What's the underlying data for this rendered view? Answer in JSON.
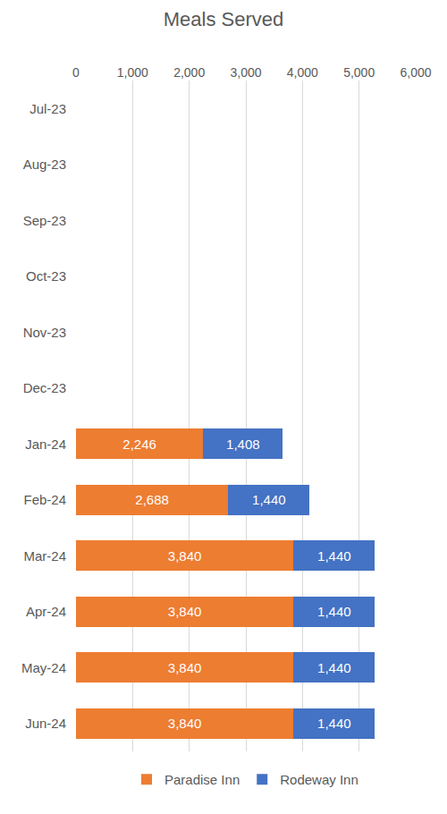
{
  "chart_data": {
    "type": "bar",
    "title": "Meals Served",
    "orientation": "horizontal",
    "stacked": true,
    "data_labels": true,
    "grid": true,
    "legend": "bottom",
    "categories": [
      "Jul-23",
      "Aug-23",
      "Sep-23",
      "Oct-23",
      "Nov-23",
      "Dec-23",
      "Jan-24",
      "Feb-24",
      "Mar-24",
      "Apr-24",
      "May-24",
      "Jun-24"
    ],
    "series": [
      {
        "name": "Paradise Inn",
        "color": "#ed7d31",
        "values": [
          null,
          null,
          null,
          null,
          null,
          null,
          2246,
          2688,
          3840,
          3840,
          3840,
          3840
        ],
        "value_labels": [
          null,
          null,
          null,
          null,
          null,
          null,
          "2,246",
          "2,688",
          "3,840",
          "3,840",
          "3,840",
          "3,840"
        ]
      },
      {
        "name": "Rodeway Inn",
        "color": "#4472c4",
        "values": [
          null,
          null,
          null,
          null,
          null,
          null,
          1408,
          1440,
          1440,
          1440,
          1440,
          1440
        ],
        "value_labels": [
          null,
          null,
          null,
          null,
          null,
          null,
          "1,408",
          "1,440",
          "1,440",
          "1,440",
          "1,440",
          "1,440"
        ]
      }
    ],
    "xlim": [
      0,
      6000
    ],
    "xticks": [
      0,
      {
        "value": 1000,
        "label": "1,000"
      },
      {
        "value": 2000,
        "label": "2,000"
      },
      {
        "value": 3000,
        "label": "3,000"
      },
      {
        "value": 4000,
        "label": "4,000"
      },
      {
        "value": 5000,
        "label": "5,000"
      },
      {
        "value": 6000,
        "label": "6,000"
      }
    ]
  }
}
